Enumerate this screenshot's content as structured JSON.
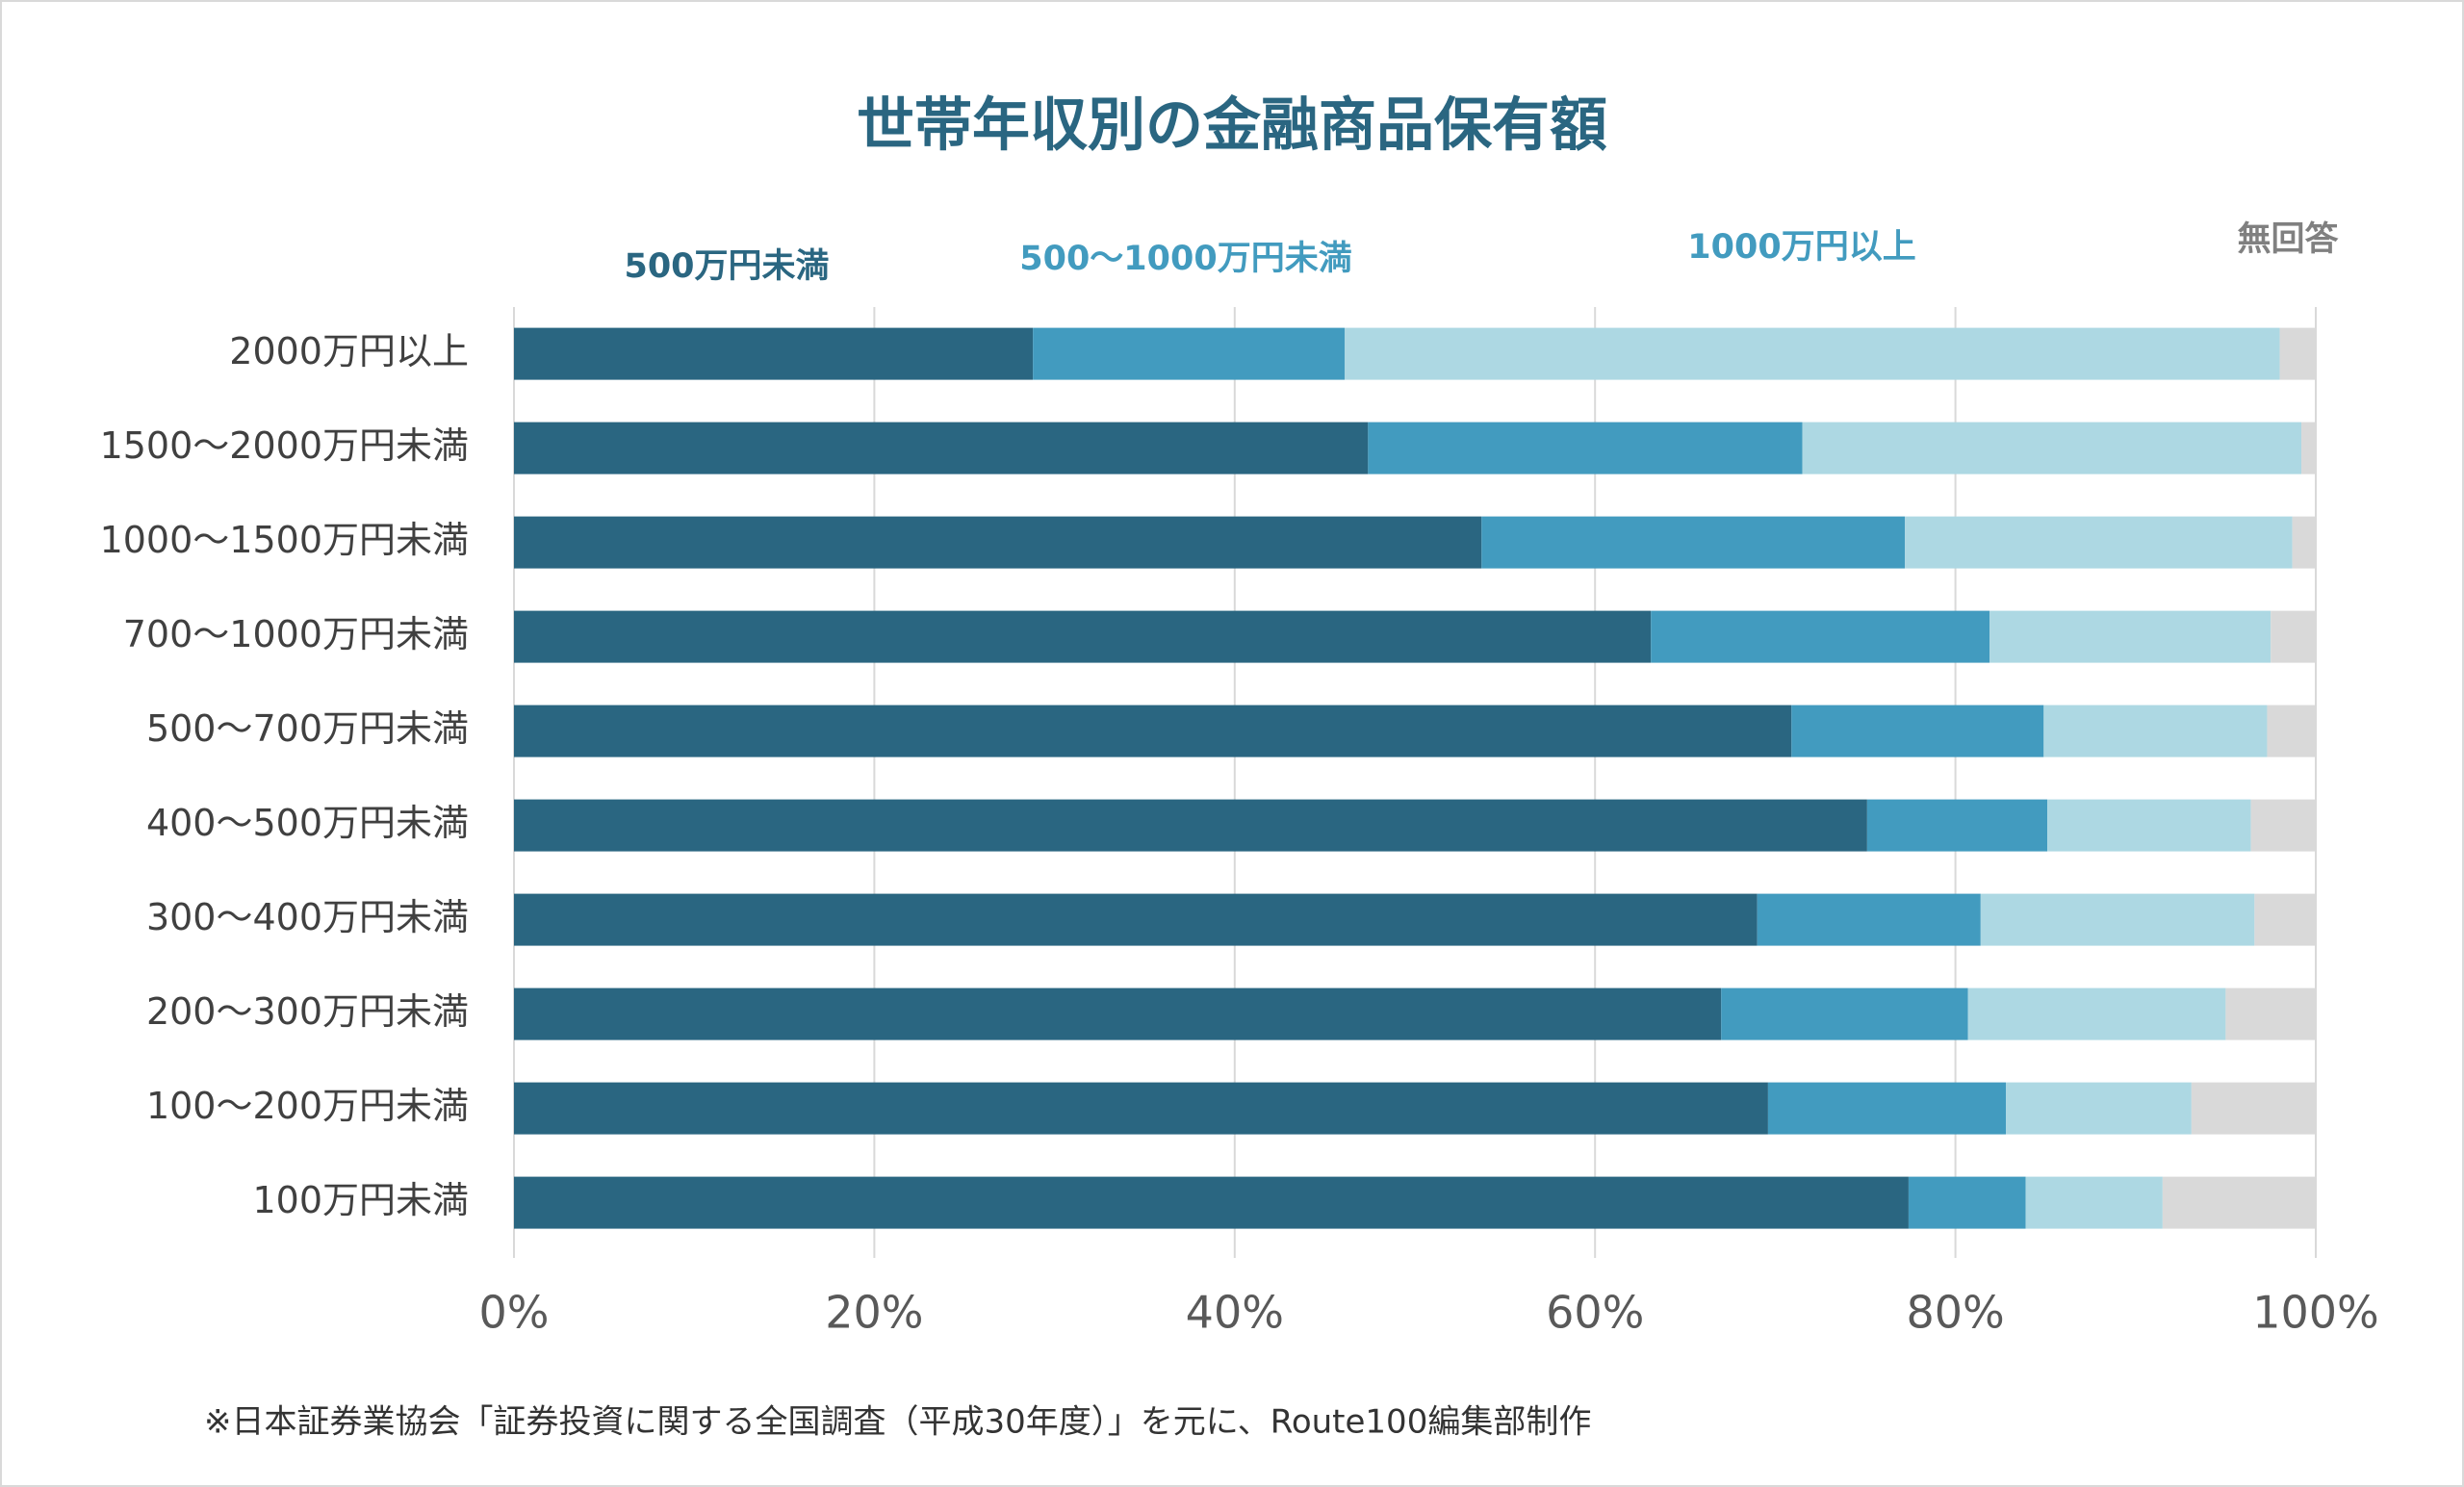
{
  "chart_data": {
    "type": "stacked-bar-horizontal",
    "title": "世帯年収別の金融商品保有額",
    "note": "※日本証券業協会「証券投資に関する全国調査（平成30年度）」を元に、Route100編集部制作",
    "categories": [
      "2000万円以上",
      "1500～2000万円未満",
      "1000～1500万円未満",
      "700～1000万円未満",
      "500～700万円未満",
      "400～500万円未満",
      "300～400万円未満",
      "200～300万円未満",
      "100～200万円未満",
      "100万円未満"
    ],
    "series": [
      {
        "name": "500万円未満",
        "color": "#2a6681",
        "values": [
          28.8,
          47.4,
          53.7,
          63.1,
          70.9,
          75.1,
          69.0,
          67.0,
          69.6,
          77.4
        ]
      },
      {
        "name": "500～1000万円未満",
        "color": "#429bbf",
        "values": [
          17.3,
          24.1,
          23.5,
          18.8,
          14.0,
          10.0,
          12.4,
          13.7,
          13.2,
          6.5
        ]
      },
      {
        "name": "1000万円以上",
        "color": "#add8e3",
        "values": [
          51.9,
          27.7,
          21.5,
          15.6,
          12.4,
          11.3,
          15.2,
          14.3,
          10.3,
          7.6
        ]
      },
      {
        "name": "無回答",
        "color": "#d9d9d9",
        "values": [
          2.0,
          0.8,
          1.3,
          2.5,
          2.7,
          3.6,
          3.4,
          5.0,
          6.9,
          8.5
        ]
      }
    ],
    "xlim": [
      0,
      100
    ],
    "xticks": [
      {
        "value": 0,
        "label": "0%"
      },
      {
        "value": 20,
        "label": "20%"
      },
      {
        "value": 40,
        "label": "40%"
      },
      {
        "value": 60,
        "label": "60%"
      },
      {
        "value": 80,
        "label": "80%"
      },
      {
        "value": 100,
        "label": "100%"
      }
    ],
    "grid": true
  }
}
